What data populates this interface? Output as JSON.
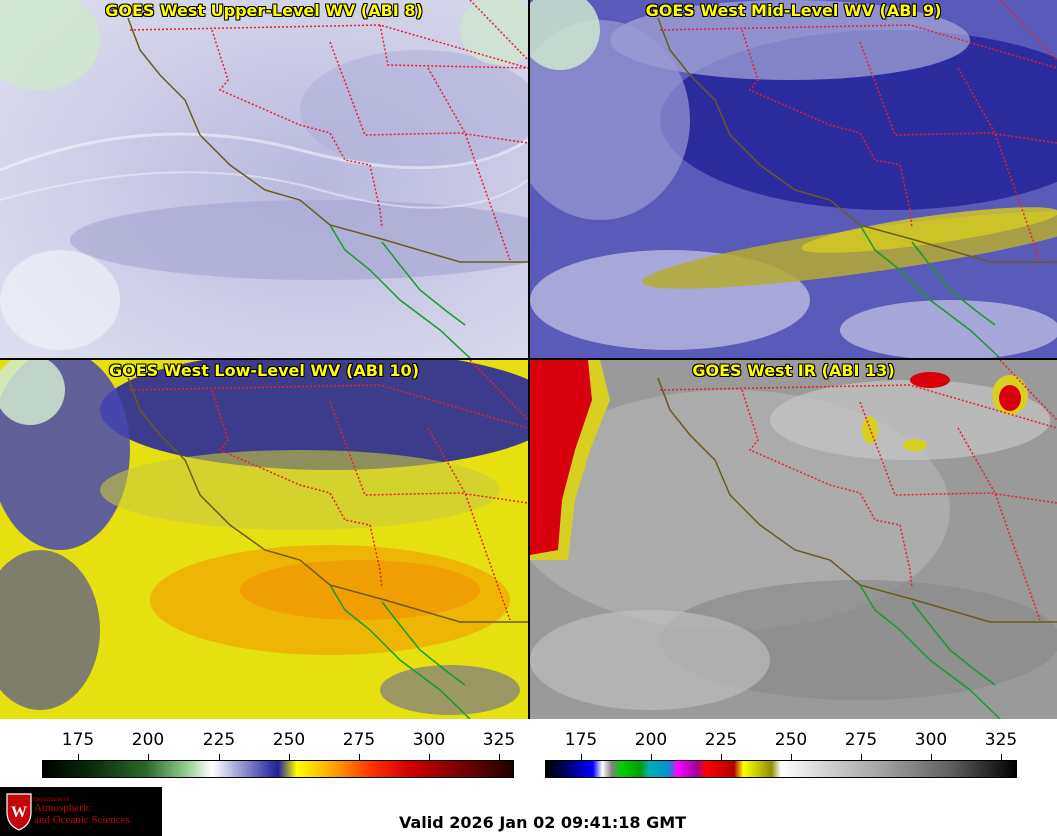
{
  "panels": {
    "upper": {
      "title": "GOES West Upper-Level WV (ABI 8)"
    },
    "mid": {
      "title": "GOES West Mid-Level WV (ABI 9)"
    },
    "low": {
      "title": "GOES West Low-Level WV (ABI 10)"
    },
    "ir": {
      "title": "GOES West IR (ABI 13)"
    }
  },
  "colorbars": {
    "wv": {
      "ticks": [
        "175",
        "200",
        "225",
        "250",
        "275",
        "300",
        "325"
      ]
    },
    "ir": {
      "ticks": [
        "175",
        "200",
        "225",
        "250",
        "275",
        "300",
        "325"
      ]
    }
  },
  "logo": {
    "department": "Department of",
    "name_line1": "Atmospheric",
    "name_line2": "and Oceanic Sciences",
    "badge": "W"
  },
  "footer": {
    "valid": "Valid 2026 Jan 02 09:41:18 GMT"
  },
  "colors": {
    "title_text": "#ffff00",
    "state_borders": "#e8202a",
    "coastline": "#6b5a1e",
    "mexico_coast": "#1a9a2a",
    "logo_red": "#c5050c"
  }
}
